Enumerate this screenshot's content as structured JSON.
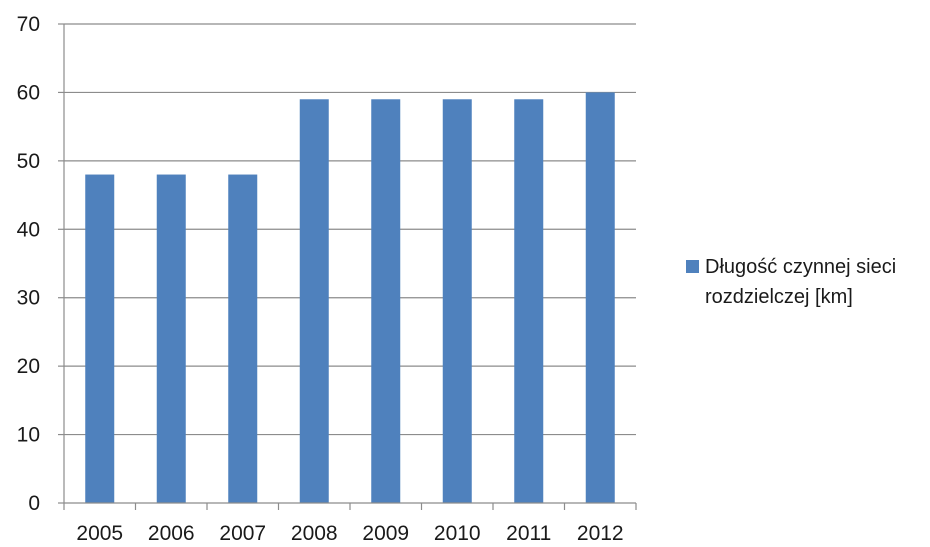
{
  "chart_data": {
    "type": "bar",
    "title": "",
    "xlabel": "",
    "ylabel": "",
    "categories": [
      "2005",
      "2006",
      "2007",
      "2008",
      "2009",
      "2010",
      "2011",
      "2012"
    ],
    "series": [
      {
        "name": "Długość czynnej sieci rozdzielczej [km]",
        "values": [
          48,
          48,
          48,
          59,
          59,
          59,
          59,
          60
        ]
      }
    ],
    "ylim": [
      0,
      70
    ],
    "yticks": [
      "0",
      "10",
      "20",
      "30",
      "40",
      "50",
      "60",
      "70"
    ],
    "grid": true,
    "legend_position": "right"
  },
  "colors": {
    "bar": "#4f81bd",
    "grid": "#8c8c8c",
    "axis": "#8c8c8c"
  }
}
